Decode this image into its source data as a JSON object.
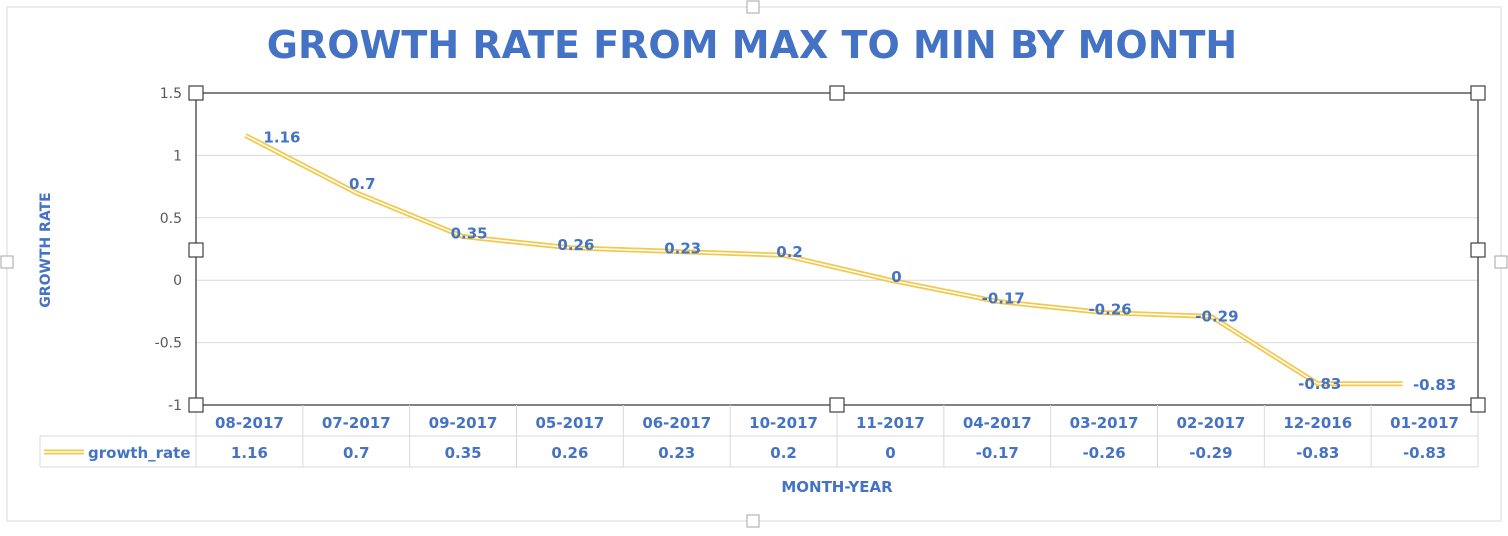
{
  "colors": {
    "title": "#4472C4",
    "labels": "#4472C4",
    "line": "#F2C94C",
    "line_core": "#FFFFFF",
    "grid": "#D9D9D9",
    "axis": "#595959",
    "handle_fill": "#FFFFFF",
    "handle_stroke": "#404040"
  },
  "chart_data": {
    "type": "line",
    "title": "GROWTH RATE FROM MAX TO MIN BY MONTH",
    "xlabel": "MONTH-YEAR",
    "ylabel": "GROWTH RATE",
    "ylim": [
      -1,
      1.5
    ],
    "yticks": [
      "1.5",
      "1",
      "0.5",
      "0",
      "-0.5",
      "-1"
    ],
    "ytick_values": [
      1.5,
      1,
      0.5,
      0,
      -0.5,
      -1
    ],
    "grid": true,
    "legend": "data-table",
    "categories": [
      "08-2017",
      "07-2017",
      "09-2017",
      "05-2017",
      "06-2017",
      "10-2017",
      "11-2017",
      "04-2017",
      "03-2017",
      "02-2017",
      "12-2016",
      "01-2017"
    ],
    "series": [
      {
        "name": "growth_rate",
        "values": [
          1.16,
          0.7,
          0.35,
          0.26,
          0.23,
          0.2,
          0,
          -0.17,
          -0.26,
          -0.29,
          -0.83,
          -0.83
        ],
        "labels": [
          "1.16",
          "0.7",
          "0.35",
          "0.26",
          "0.23",
          "0.2",
          "0",
          "-0.17",
          "-0.26",
          "-0.29",
          "-0.83",
          "-0.83"
        ]
      }
    ]
  }
}
